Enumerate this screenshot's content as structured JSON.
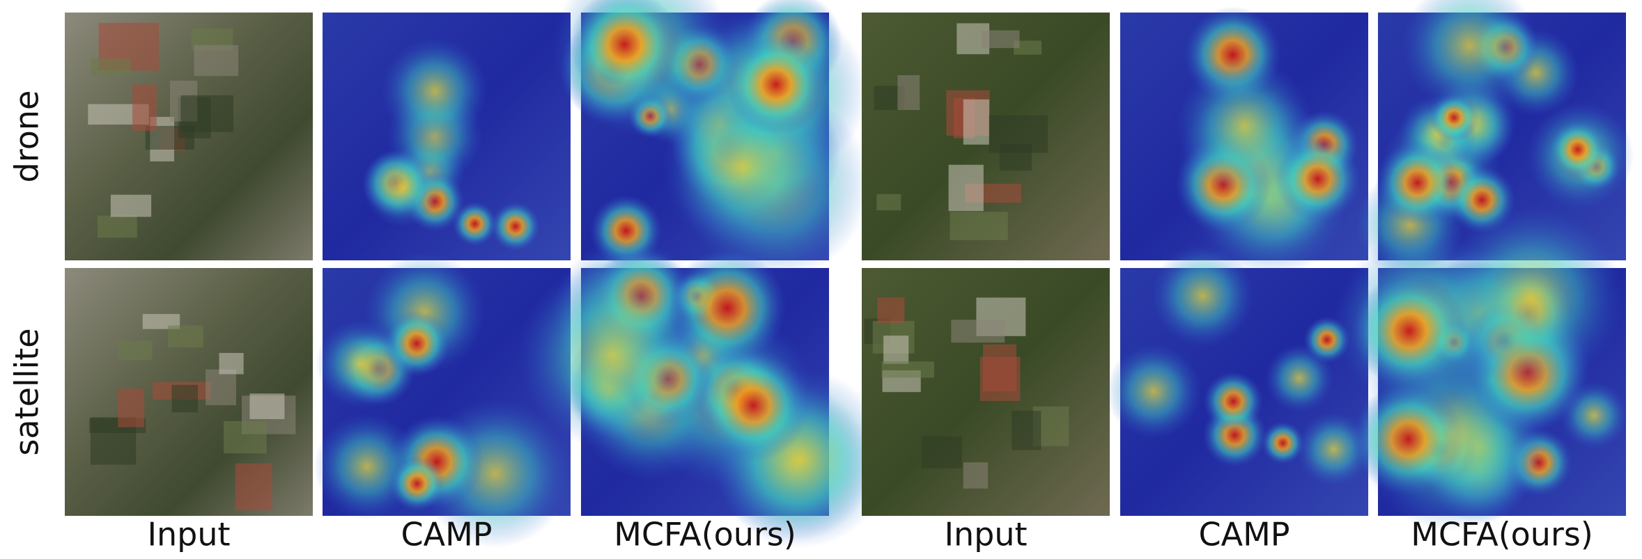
{
  "row_labels": [
    "drone",
    "satellite"
  ],
  "groups": [
    {
      "column_labels": [
        "Input",
        "CAMP",
        "MCFA(ours)"
      ]
    },
    {
      "column_labels": [
        "Input",
        "CAMP",
        "MCFA(ours)"
      ]
    }
  ]
}
